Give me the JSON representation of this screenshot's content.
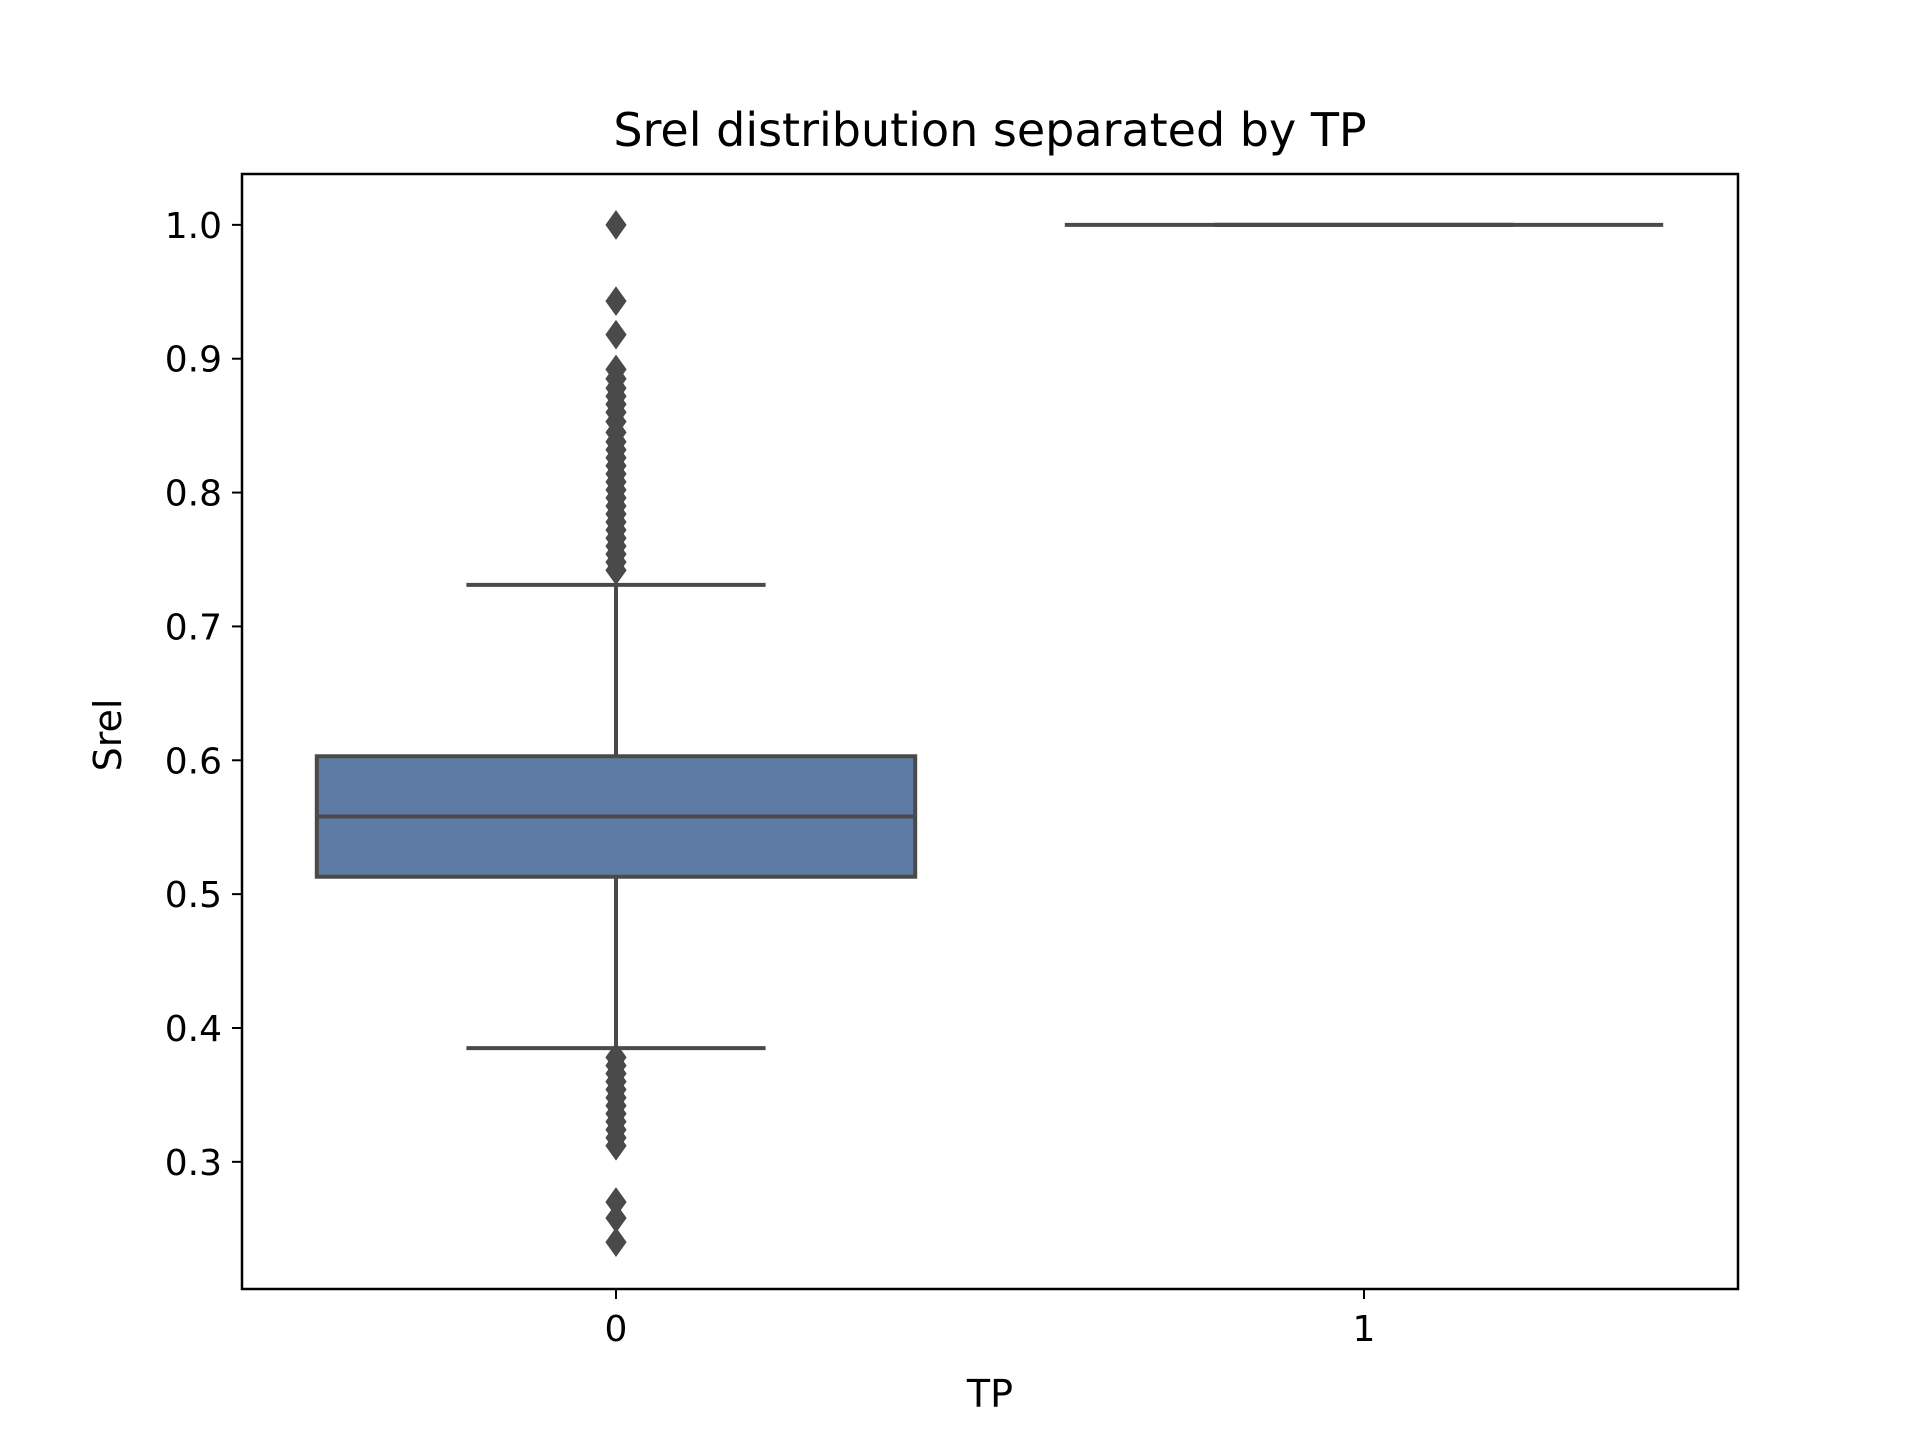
{
  "chart_data": {
    "type": "box",
    "title": "Srel distribution separated by TP",
    "xlabel": "TP",
    "ylabel": "Srel",
    "categories": [
      "0",
      "1"
    ],
    "ylim": [
      0.205,
      1.038
    ],
    "yticks": [
      "0.3",
      "0.4",
      "0.5",
      "0.6",
      "0.7",
      "0.8",
      "0.9",
      "1.0"
    ],
    "grid": false,
    "boxes": [
      {
        "category": "0",
        "whisker_low": 0.385,
        "q1": 0.513,
        "median": 0.558,
        "q3": 0.603,
        "whisker_high": 0.731,
        "fill_color": "#5e7ba5",
        "outliers": [
          1.0,
          0.943,
          0.918,
          0.892,
          0.885,
          0.878,
          0.872,
          0.866,
          0.86,
          0.853,
          0.845,
          0.838,
          0.832,
          0.826,
          0.82,
          0.814,
          0.808,
          0.802,
          0.796,
          0.79,
          0.784,
          0.778,
          0.772,
          0.766,
          0.76,
          0.754,
          0.748,
          0.742,
          0.378,
          0.372,
          0.366,
          0.36,
          0.354,
          0.348,
          0.342,
          0.336,
          0.33,
          0.324,
          0.318,
          0.312,
          0.27,
          0.258,
          0.24
        ]
      },
      {
        "category": "1",
        "whisker_low": 1.0,
        "q1": 1.0,
        "median": 1.0,
        "q3": 1.0,
        "whisker_high": 1.0,
        "fill_color": "#5e7ba5",
        "outliers": []
      }
    ],
    "line_color": "#4a4a4a"
  }
}
